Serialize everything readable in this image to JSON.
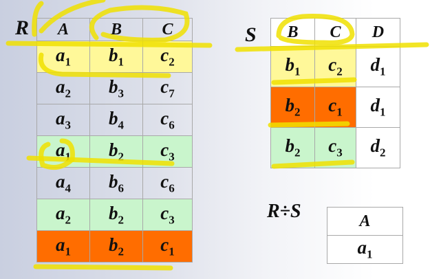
{
  "R": {
    "label": "R",
    "headers": [
      "A",
      "B",
      "C"
    ],
    "rows": [
      {
        "cells": [
          [
            "a",
            "1"
          ],
          [
            "b",
            "1"
          ],
          [
            "c",
            "2"
          ]
        ],
        "highlight": "yellow"
      },
      {
        "cells": [
          [
            "a",
            "2"
          ],
          [
            "b",
            "3"
          ],
          [
            "c",
            "7"
          ]
        ],
        "highlight": ""
      },
      {
        "cells": [
          [
            "a",
            "3"
          ],
          [
            "b",
            "4"
          ],
          [
            "c",
            "6"
          ]
        ],
        "highlight": ""
      },
      {
        "cells": [
          [
            "a",
            "1"
          ],
          [
            "b",
            "2"
          ],
          [
            "c",
            "3"
          ]
        ],
        "highlight": "green"
      },
      {
        "cells": [
          [
            "a",
            "4"
          ],
          [
            "b",
            "6"
          ],
          [
            "c",
            "6"
          ]
        ],
        "highlight": ""
      },
      {
        "cells": [
          [
            "a",
            "2"
          ],
          [
            "b",
            "2"
          ],
          [
            "c",
            "3"
          ]
        ],
        "highlight": "green"
      },
      {
        "cells": [
          [
            "a",
            "1"
          ],
          [
            "b",
            "2"
          ],
          [
            "c",
            "1"
          ]
        ],
        "highlight": "orange"
      }
    ]
  },
  "S": {
    "label": "S",
    "headers": [
      "B",
      "C",
      "D"
    ],
    "rows": [
      {
        "cells": [
          [
            "b",
            "1"
          ],
          [
            "c",
            "2"
          ],
          [
            "d",
            "1"
          ]
        ],
        "highlight": "yellow"
      },
      {
        "cells": [
          [
            "b",
            "2"
          ],
          [
            "c",
            "1"
          ],
          [
            "d",
            "1"
          ]
        ],
        "highlight": "orange"
      },
      {
        "cells": [
          [
            "b",
            "2"
          ],
          [
            "c",
            "3"
          ],
          [
            "d",
            "2"
          ]
        ],
        "highlight": "green"
      }
    ]
  },
  "result": {
    "label": "R÷S",
    "headers": [
      "A"
    ],
    "rows": [
      [
        [
          "a",
          "1"
        ]
      ]
    ]
  },
  "colors": {
    "yellow": "#fff899",
    "green": "#c9f5cc",
    "orange": "#ff6d00",
    "pen": "#f0e000"
  }
}
